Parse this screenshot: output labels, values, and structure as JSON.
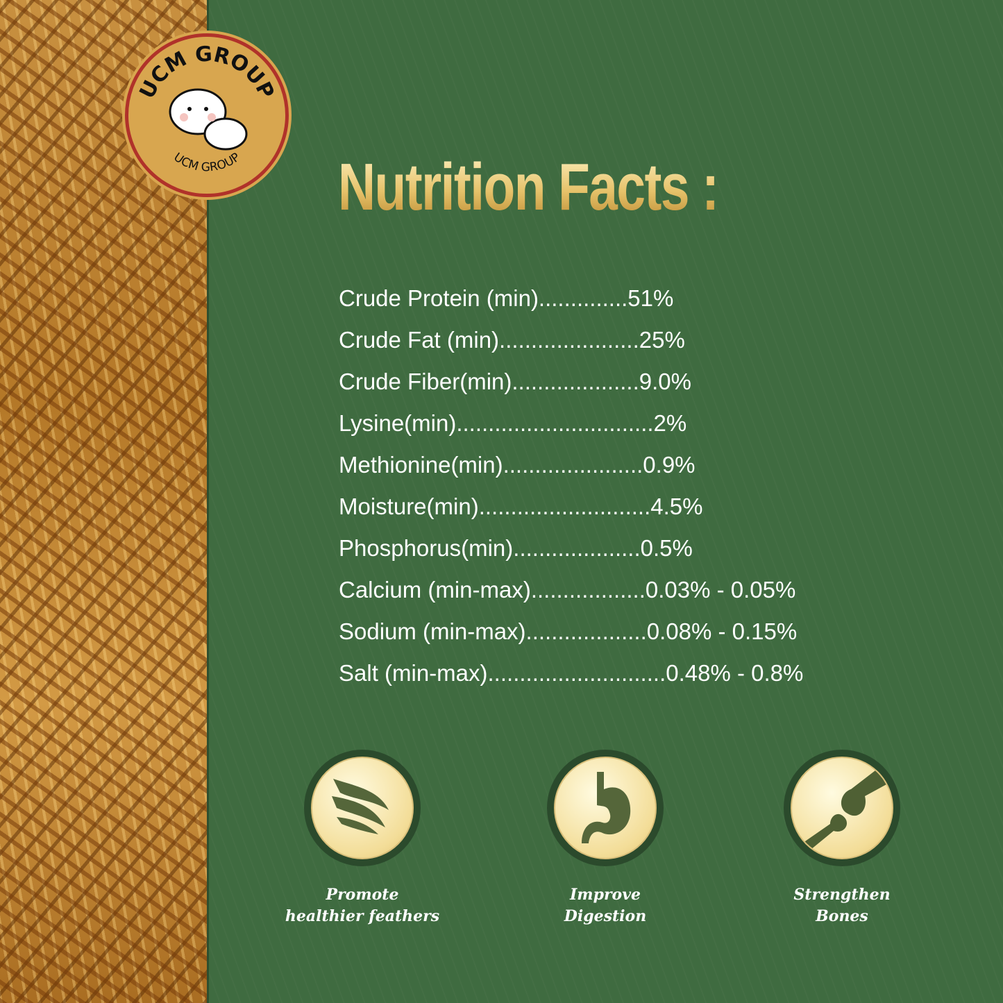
{
  "logo": {
    "text_top": "UCM GROUP",
    "text_bottom": "UCM GROUP"
  },
  "title": "Nutrition Facts :",
  "facts": [
    "Crude Protein (min)..............51%",
    "Crude Fat (min)......................25%",
    "Crude Fiber(min)....................9.0%",
    "Lysine(min)...............................2%",
    "Methionine(min)......................0.9%",
    "Moisture(min)...........................4.5%",
    "Phosphorus(min)....................0.5%",
    "Calcium (min-max)..................0.03% - 0.05%",
    "Sodium (min-max)...................0.08% - 0.15%",
    "Salt (min-max)............................0.48% - 0.8%"
  ],
  "benefits": [
    {
      "icon": "feather-icon",
      "line1": "Promote",
      "line2": "healthier feathers"
    },
    {
      "icon": "stomach-icon",
      "line1": "Improve",
      "line2": "Digestion"
    },
    {
      "icon": "bone-icon",
      "line1": "Strengthen",
      "line2": "Bones"
    }
  ],
  "colors": {
    "background": "#3f6b40",
    "title_gold": "#e6c26a",
    "logo": "#d8a64f"
  }
}
